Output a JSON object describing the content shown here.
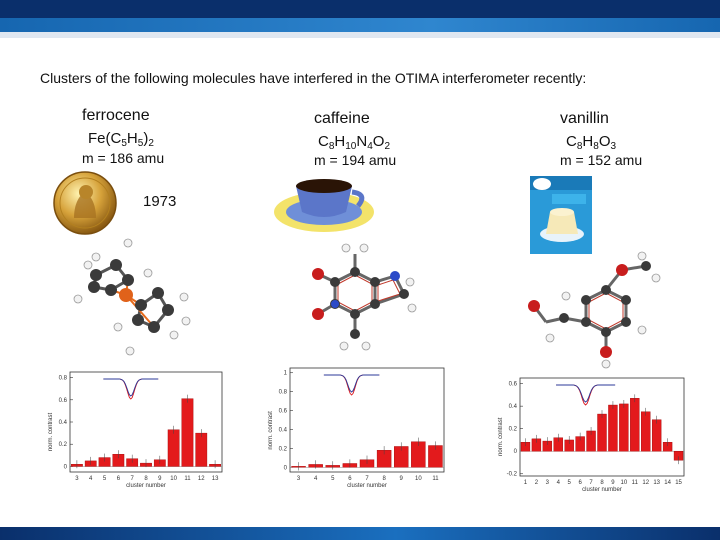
{
  "intro": "Clusters of the following molecules have interfered in the OTIMA interferometer recently:",
  "colors": {
    "bar": "#e31a1c",
    "bar_edge": "#9e0000",
    "trace_red": "#d9161d",
    "trace_blue": "#2b3a9a",
    "band_dark": "#0a2f6b",
    "band_light": "#2f86cf"
  },
  "molecules": [
    {
      "name": "ferrocene",
      "formula_parts": [
        "Fe(C",
        "5",
        "H",
        "5",
        ")",
        "2"
      ],
      "mass": "m = 186 amu",
      "award_year": "1973",
      "icon": "nobel-medal-icon",
      "structure_icon": "ferrocene-3d-model"
    },
    {
      "name": "caffeine",
      "formula_parts": [
        "C",
        "8",
        "H",
        "10",
        "N",
        "4",
        "O",
        "2"
      ],
      "mass": "m = 194 amu",
      "icon": "coffee-cup-icon",
      "structure_icon": "caffeine-3d-model"
    },
    {
      "name": "vanillin",
      "formula_parts": [
        "C",
        "8",
        "H",
        "8",
        "O",
        "3"
      ],
      "mass": "m = 152 amu",
      "icon": "pudding-package-icon",
      "structure_icon": "vanillin-3d-model"
    }
  ],
  "chart_data": [
    {
      "type": "bar",
      "xlabel": "cluster number",
      "ylabel": "norm. contrast",
      "categories": [
        "3",
        "4",
        "5",
        "6",
        "7",
        "8",
        "9",
        "10",
        "11",
        "12",
        "13"
      ],
      "values": [
        0.02,
        0.05,
        0.08,
        0.11,
        0.07,
        0.03,
        0.06,
        0.33,
        0.61,
        0.3,
        0.02
      ],
      "ylim": [
        -0.05,
        0.85
      ],
      "yticks": [
        "0",
        "0.2",
        "0.4",
        "0.6",
        "0.8"
      ]
    },
    {
      "type": "bar",
      "xlabel": "cluster number",
      "ylabel": "norm. contrast",
      "categories": [
        "3",
        "4",
        "5",
        "6",
        "7",
        "8",
        "9",
        "10",
        "11"
      ],
      "values": [
        0.01,
        0.03,
        0.02,
        0.04,
        0.08,
        0.18,
        0.22,
        0.27,
        0.23
      ],
      "ylim": [
        -0.05,
        1.05
      ],
      "yticks": [
        "0",
        "0.2",
        "0.4",
        "0.6",
        "0.8",
        "1"
      ]
    },
    {
      "type": "bar",
      "xlabel": "cluster number",
      "ylabel": "norm. contrast",
      "categories": [
        "1",
        "2",
        "3",
        "4",
        "5",
        "6",
        "7",
        "8",
        "9",
        "10",
        "11",
        "12",
        "13",
        "14",
        "15"
      ],
      "values": [
        0.08,
        0.11,
        0.09,
        0.12,
        0.1,
        0.13,
        0.18,
        0.33,
        0.41,
        0.42,
        0.47,
        0.35,
        0.28,
        0.08,
        -0.08
      ],
      "ylim": [
        -0.22,
        0.65
      ],
      "yticks": [
        "-0.2",
        "0",
        "0.2",
        "0.4",
        "0.6"
      ]
    }
  ]
}
